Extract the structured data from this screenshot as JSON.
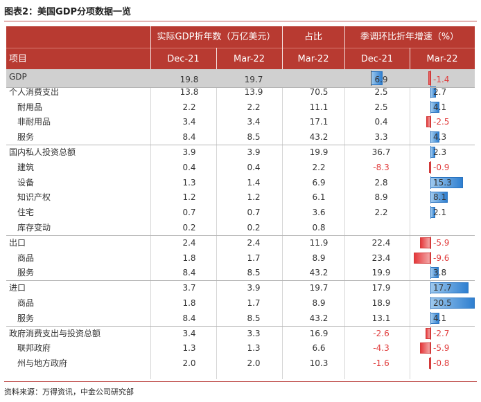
{
  "title": "图表2：美国GDP分项数据一览",
  "source": "资料来源：万得资讯，中金公司研究部",
  "header": {
    "group_real_gdp": "实际GDP折年数（万亿美元）",
    "group_share": "占比",
    "group_growth": "季调环比折年增速（%）",
    "item": "项目",
    "dec21": "Dec-21",
    "mar22": "Mar-22",
    "share_mar22": "Mar-22",
    "growth_dec21": "Dec-21",
    "growth_mar22": "Mar-22"
  },
  "chart_data": {
    "type": "table",
    "columns": [
      "项目",
      "Dec-21",
      "Mar-22",
      "Mar-22",
      "Dec-21",
      "Mar-22"
    ],
    "rows": [
      {
        "label": "GDP",
        "level": 0,
        "real_dec21": "19.8",
        "real_mar22": "19.7",
        "share": "",
        "g_dec21": 6.9,
        "g_mar22": -1.4
      },
      {
        "label": "个人消费支出",
        "level": 0,
        "real_dec21": "13.8",
        "real_mar22": "13.9",
        "share": "70.5",
        "g_dec21": 2.5,
        "g_mar22": 2.7
      },
      {
        "label": "耐用品",
        "level": 1,
        "real_dec21": "2.2",
        "real_mar22": "2.2",
        "share": "11.1",
        "g_dec21": 2.5,
        "g_mar22": 4.1
      },
      {
        "label": "非耐用品",
        "level": 1,
        "real_dec21": "3.4",
        "real_mar22": "3.4",
        "share": "17.1",
        "g_dec21": 0.4,
        "g_mar22": -2.5
      },
      {
        "label": "服务",
        "level": 1,
        "real_dec21": "8.4",
        "real_mar22": "8.5",
        "share": "43.2",
        "g_dec21": 3.3,
        "g_mar22": 4.3
      },
      {
        "label": "国内私人投资总额",
        "level": 0,
        "real_dec21": "3.9",
        "real_mar22": "3.9",
        "share": "19.9",
        "g_dec21": 36.7,
        "g_mar22": 2.3
      },
      {
        "label": "建筑",
        "level": 1,
        "real_dec21": "0.4",
        "real_mar22": "0.4",
        "share": "2.2",
        "g_dec21": -8.3,
        "g_mar22": -0.9
      },
      {
        "label": "设备",
        "level": 1,
        "real_dec21": "1.3",
        "real_mar22": "1.4",
        "share": "6.9",
        "g_dec21": 2.8,
        "g_mar22": 15.3
      },
      {
        "label": "知识产权",
        "level": 1,
        "real_dec21": "1.2",
        "real_mar22": "1.2",
        "share": "6.1",
        "g_dec21": 8.9,
        "g_mar22": 8.1
      },
      {
        "label": "住宅",
        "level": 1,
        "real_dec21": "0.7",
        "real_mar22": "0.7",
        "share": "3.6",
        "g_dec21": 2.2,
        "g_mar22": 2.1
      },
      {
        "label": "库存变动",
        "level": 1,
        "real_dec21": "0.2",
        "real_mar22": "0.2",
        "share": "0.8",
        "g_dec21": null,
        "g_mar22": null
      },
      {
        "label": "出口",
        "level": 0,
        "real_dec21": "2.4",
        "real_mar22": "2.4",
        "share": "11.9",
        "g_dec21": 22.4,
        "g_mar22": -5.9
      },
      {
        "label": "商品",
        "level": 1,
        "real_dec21": "1.8",
        "real_mar22": "1.7",
        "share": "8.9",
        "g_dec21": 23.4,
        "g_mar22": -9.6
      },
      {
        "label": "服务",
        "level": 1,
        "real_dec21": "8.4",
        "real_mar22": "8.5",
        "share": "43.2",
        "g_dec21": 19.9,
        "g_mar22": 3.8
      },
      {
        "label": "进口",
        "level": 0,
        "real_dec21": "3.7",
        "real_mar22": "3.9",
        "share": "19.7",
        "g_dec21": 17.9,
        "g_mar22": 17.7
      },
      {
        "label": "商品",
        "level": 1,
        "real_dec21": "1.8",
        "real_mar22": "1.7",
        "share": "8.9",
        "g_dec21": 18.9,
        "g_mar22": 20.5
      },
      {
        "label": "服务",
        "level": 1,
        "real_dec21": "8.4",
        "real_mar22": "8.5",
        "share": "43.2",
        "g_dec21": 13.1,
        "g_mar22": 4.1
      },
      {
        "label": "政府消费支出与投资总额",
        "level": 0,
        "real_dec21": "3.4",
        "real_mar22": "3.3",
        "share": "16.9",
        "g_dec21": -2.6,
        "g_mar22": -2.7
      },
      {
        "label": "联邦政府",
        "level": 1,
        "real_dec21": "1.3",
        "real_mar22": "1.3",
        "share": "6.6",
        "g_dec21": -4.3,
        "g_mar22": -5.9
      },
      {
        "label": "州与地方政府",
        "level": 1,
        "real_dec21": "2.0",
        "real_mar22": "2.0",
        "share": "10.3",
        "g_dec21": -1.6,
        "g_mar22": -0.8
      }
    ],
    "databars": {
      "growth_dec21": [
        "GDP"
      ],
      "growth_mar22": "all"
    }
  },
  "colors": {
    "header_bg": "#b83a31",
    "positive_bar": "#2f7fd0",
    "negative_bar": "#e5383b",
    "negative_text": "#e03b3b",
    "gdp_row_bg": "#d0d0d0"
  }
}
